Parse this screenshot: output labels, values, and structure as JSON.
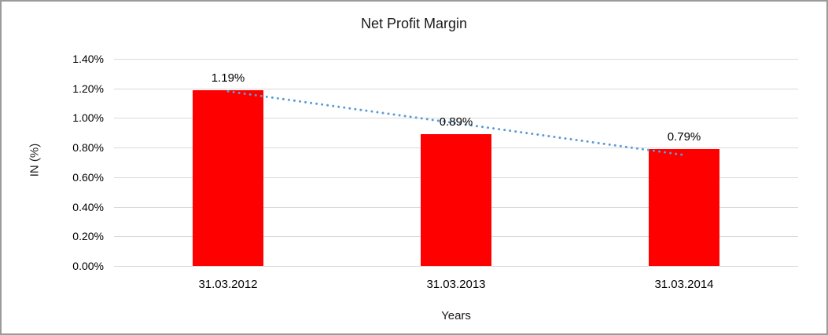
{
  "chart_data": {
    "type": "bar",
    "title": "Net Profit Margin",
    "xlabel": "Years",
    "ylabel": "IN (%)",
    "categories": [
      "31.03.2012",
      "31.03.2013",
      "31.03.2014"
    ],
    "values": [
      1.19,
      0.89,
      0.79
    ],
    "data_labels": [
      "1.19%",
      "0.89%",
      "0.79%"
    ],
    "ylim": [
      0,
      1.4
    ],
    "ytick_labels": [
      "1.40%",
      "1.20%",
      "1.00%",
      "0.80%",
      "0.60%",
      "0.40%",
      "0.20%",
      "0.00%"
    ],
    "grid": true,
    "legend": "none",
    "bar_color": "#ff0000",
    "gridline_color": "#d9d9d9",
    "trendline": {
      "style": "dotted",
      "color": "#5b9bd5",
      "start_value": 1.18,
      "end_value": 0.75
    }
  }
}
